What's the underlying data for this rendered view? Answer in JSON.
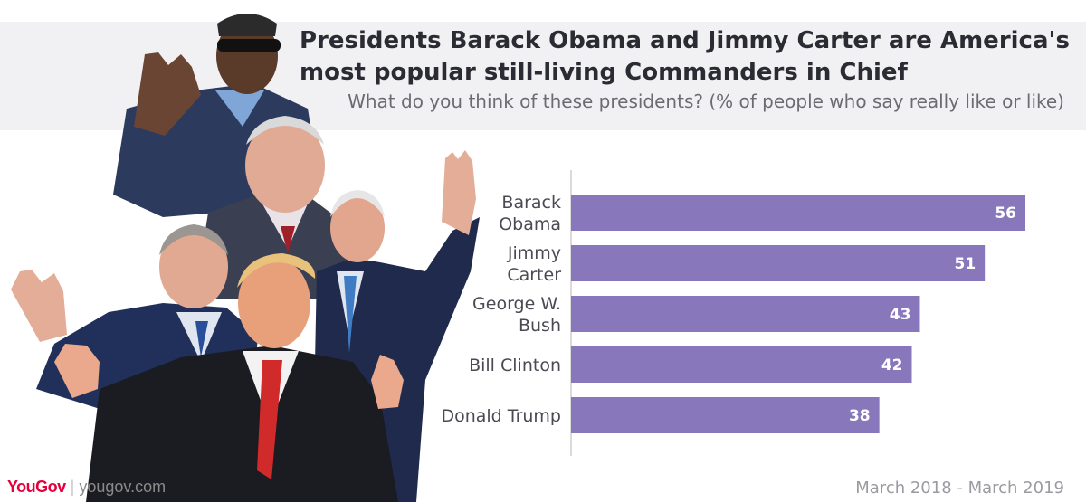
{
  "title": "Presidents Barack Obama and Jimmy Carter are America's most popular still-living Commanders in Chief",
  "subtitle": "What do you think of these presidents? (% of people who say really like or like)",
  "footer": {
    "brand": "YouGov",
    "separator": "|",
    "url": "yougov.com",
    "date_range": "March 2018 - March 2019"
  },
  "colors": {
    "bar": "#8877bb",
    "header_band": "#f1f1f4",
    "brand": "#e4003a"
  },
  "chart_data": {
    "type": "bar",
    "orientation": "horizontal",
    "title": "Presidents Barack Obama and Jimmy Carter are America's most popular still-living Commanders in Chief",
    "subtitle": "What do you think of these presidents? (% of people who say really like or like)",
    "categories": [
      [
        "Barack",
        "Obama"
      ],
      [
        "Jimmy",
        "Carter"
      ],
      [
        "George W.",
        "Bush"
      ],
      [
        "Bill Clinton"
      ],
      [
        "Donald Trump"
      ]
    ],
    "values": [
      56,
      51,
      43,
      42,
      38
    ],
    "xlim": [
      0,
      56
    ],
    "xlabel": "",
    "ylabel": "",
    "grid": false,
    "data_labels": true
  }
}
